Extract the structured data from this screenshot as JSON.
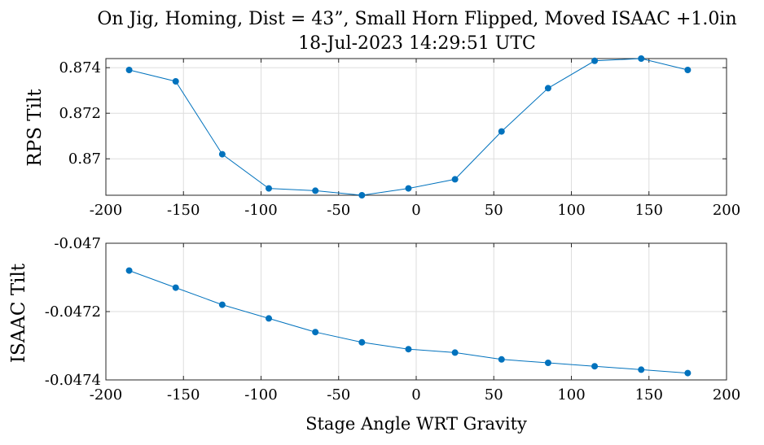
{
  "figure": {
    "title_line1": "On Jig, Homing, Dist = 43”, Small Horn Flipped, Moved ISAAC +1.0in",
    "title_line2": "18-Jul-2023 14:29:51 UTC"
  },
  "chart_data": [
    {
      "type": "line",
      "title": "On Jig, Homing, Dist = 43”, Small Horn Flipped, Moved ISAAC +1.0in — 18-Jul-2023 14:29:51 UTC",
      "xlabel": "",
      "ylabel": "RPS Tilt",
      "xlim": [
        -200,
        200
      ],
      "ylim": [
        0.8684,
        0.8744
      ],
      "xticks": [
        -200,
        -150,
        -100,
        -50,
        0,
        50,
        100,
        150,
        200
      ],
      "xtick_labels": [
        "-200",
        "-150",
        "-100",
        "-50",
        "0",
        "50",
        "100",
        "150",
        "200"
      ],
      "yticks": [
        0.87,
        0.872,
        0.874
      ],
      "ytick_labels": [
        "0.87",
        "0.872",
        "0.874"
      ],
      "grid": true,
      "marker": "circle",
      "color": "#0072BD",
      "series": [
        {
          "x": [
            -185,
            -155,
            -125,
            -95,
            -65,
            -35,
            -5,
            25,
            55,
            85,
            115,
            145,
            175
          ],
          "y": [
            0.8739,
            0.8734,
            0.8702,
            0.8687,
            0.8686,
            0.8684,
            0.8687,
            0.8691,
            0.8712,
            0.8731,
            0.8743,
            0.8744,
            0.8739
          ]
        }
      ]
    },
    {
      "type": "line",
      "xlabel": "Stage Angle WRT Gravity",
      "ylabel": "ISAAC Tilt",
      "xlim": [
        -200,
        200
      ],
      "ylim": [
        -0.0474,
        -0.047
      ],
      "xticks": [
        -200,
        -150,
        -100,
        -50,
        0,
        50,
        100,
        150,
        200
      ],
      "xtick_labels": [
        "-200",
        "-150",
        "-100",
        "-50",
        "0",
        "50",
        "100",
        "150",
        "200"
      ],
      "yticks": [
        -0.047,
        -0.0472,
        -0.0474
      ],
      "ytick_labels": [
        "-0.047",
        "-0.0472",
        "-0.0474"
      ],
      "grid": true,
      "marker": "circle",
      "color": "#0072BD",
      "series": [
        {
          "x": [
            -185,
            -155,
            -125,
            -95,
            -65,
            -35,
            -5,
            25,
            55,
            85,
            115,
            145,
            175
          ],
          "y": [
            -0.04708,
            -0.04713,
            -0.04718,
            -0.04722,
            -0.04726,
            -0.04729,
            -0.04731,
            -0.04732,
            -0.04734,
            -0.04735,
            -0.04736,
            -0.04737,
            -0.04738
          ]
        }
      ]
    }
  ]
}
